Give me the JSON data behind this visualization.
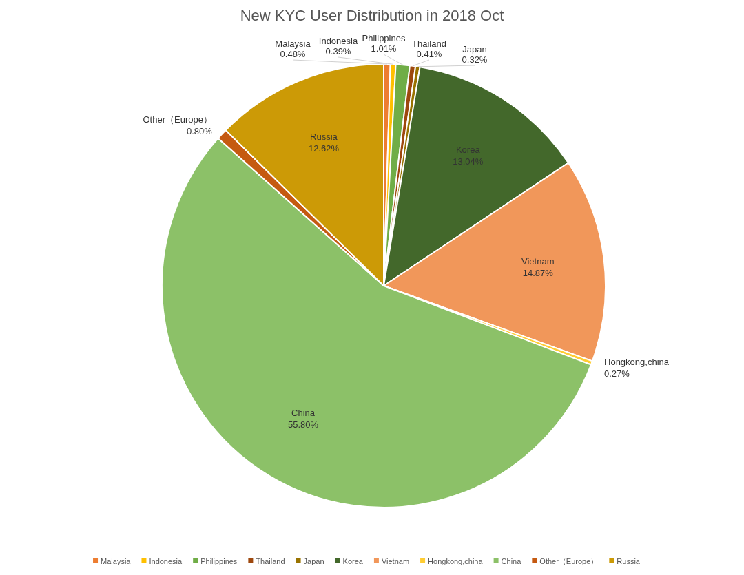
{
  "chart_data": {
    "type": "pie",
    "title": "New KYC User Distribution in 2018 Oct",
    "categories": [
      "Malaysia",
      "Indonesia",
      "Philippines",
      "Thailand",
      "Japan",
      "Korea",
      "Vietnam",
      "Hongkong,china",
      "China",
      "Other（Europe）",
      "Russia"
    ],
    "values": [
      0.48,
      0.39,
      1.01,
      0.41,
      0.32,
      13.04,
      14.87,
      0.27,
      55.8,
      0.8,
      12.62
    ],
    "value_labels": [
      "0.48%",
      "0.39%",
      "1.01%",
      "0.41%",
      "0.32%",
      "13.04%",
      "14.87%",
      "0.27%",
      "55.80%",
      "0.80%",
      "12.62%"
    ],
    "colors": [
      "#ed7d31",
      "#ffc000",
      "#70ad47",
      "#9e480e",
      "#997300",
      "#43682b",
      "#f1975a",
      "#ffcd33",
      "#8cc168",
      "#c55a11",
      "#cc9a06"
    ],
    "legend": "bottom"
  }
}
